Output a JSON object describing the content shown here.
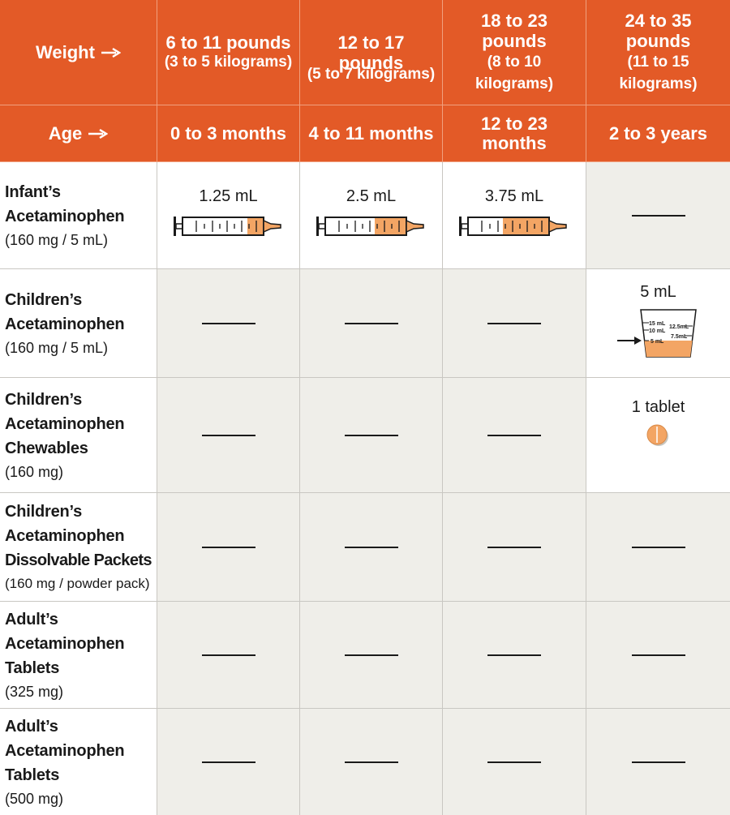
{
  "header": {
    "weight_label": "Weight",
    "age_label": "Age",
    "weights": [
      {
        "big": "6 to 11 pounds",
        "small": "(3 to 5 kilograms)"
      },
      {
        "big": "12 to 17 pounds",
        "small": "(5 to 7 kilograms)"
      },
      {
        "big": "18 to 23 pounds",
        "small": "(8 to 10 kilograms)"
      },
      {
        "big": "24 to 35 pounds",
        "small": "(11 to 15 kilograms)"
      }
    ],
    "ages": [
      "0 to 3 months",
      "4 to 11 months",
      "12 to 23 months",
      "2 to 3 years"
    ]
  },
  "rows": [
    {
      "name": [
        "Infant’s",
        "Acetaminophen"
      ],
      "strength": "(160 mg / 5 mL)",
      "doses": [
        "1.25 mL",
        "2.5 mL",
        "3.75 mL",
        ""
      ]
    },
    {
      "name": [
        "Children’s",
        "Acetaminophen"
      ],
      "strength": "(160 mg / 5 mL)",
      "doses": [
        "",
        "",
        "",
        "5 mL"
      ],
      "cup_marks": [
        "15 mL",
        "12.5mL",
        "10 mL",
        "7.5mL",
        "5 mL"
      ]
    },
    {
      "name": [
        "Children’s",
        "Acetaminophen",
        "Chewables"
      ],
      "strength": "(160 mg)",
      "doses": [
        "",
        "",
        "",
        "1 tablet"
      ]
    },
    {
      "name": [
        "Children’s",
        "Acetaminophen",
        "Dissolvable Packets"
      ],
      "strength": "(160 mg / powder pack)",
      "doses": [
        "",
        "",
        "",
        ""
      ]
    },
    {
      "name": [
        "Adult’s",
        "Acetaminophen",
        "Tablets"
      ],
      "strength": "(325 mg)",
      "doses": [
        "",
        "",
        "",
        ""
      ]
    },
    {
      "name": [
        "Adult’s",
        "Acetaminophen",
        "Tablets"
      ],
      "strength": "(500 mg)",
      "doses": [
        "",
        "",
        "",
        ""
      ]
    }
  ],
  "colors": {
    "header_orange": "#e35a27",
    "fill_orange": "#f3a564",
    "cell_gray": "#efeee9"
  },
  "icons": {
    "arrow": "arrow-right-icon",
    "syringe": "syringe-icon",
    "cup": "dosing-cup-icon",
    "tablet": "tablet-icon"
  }
}
